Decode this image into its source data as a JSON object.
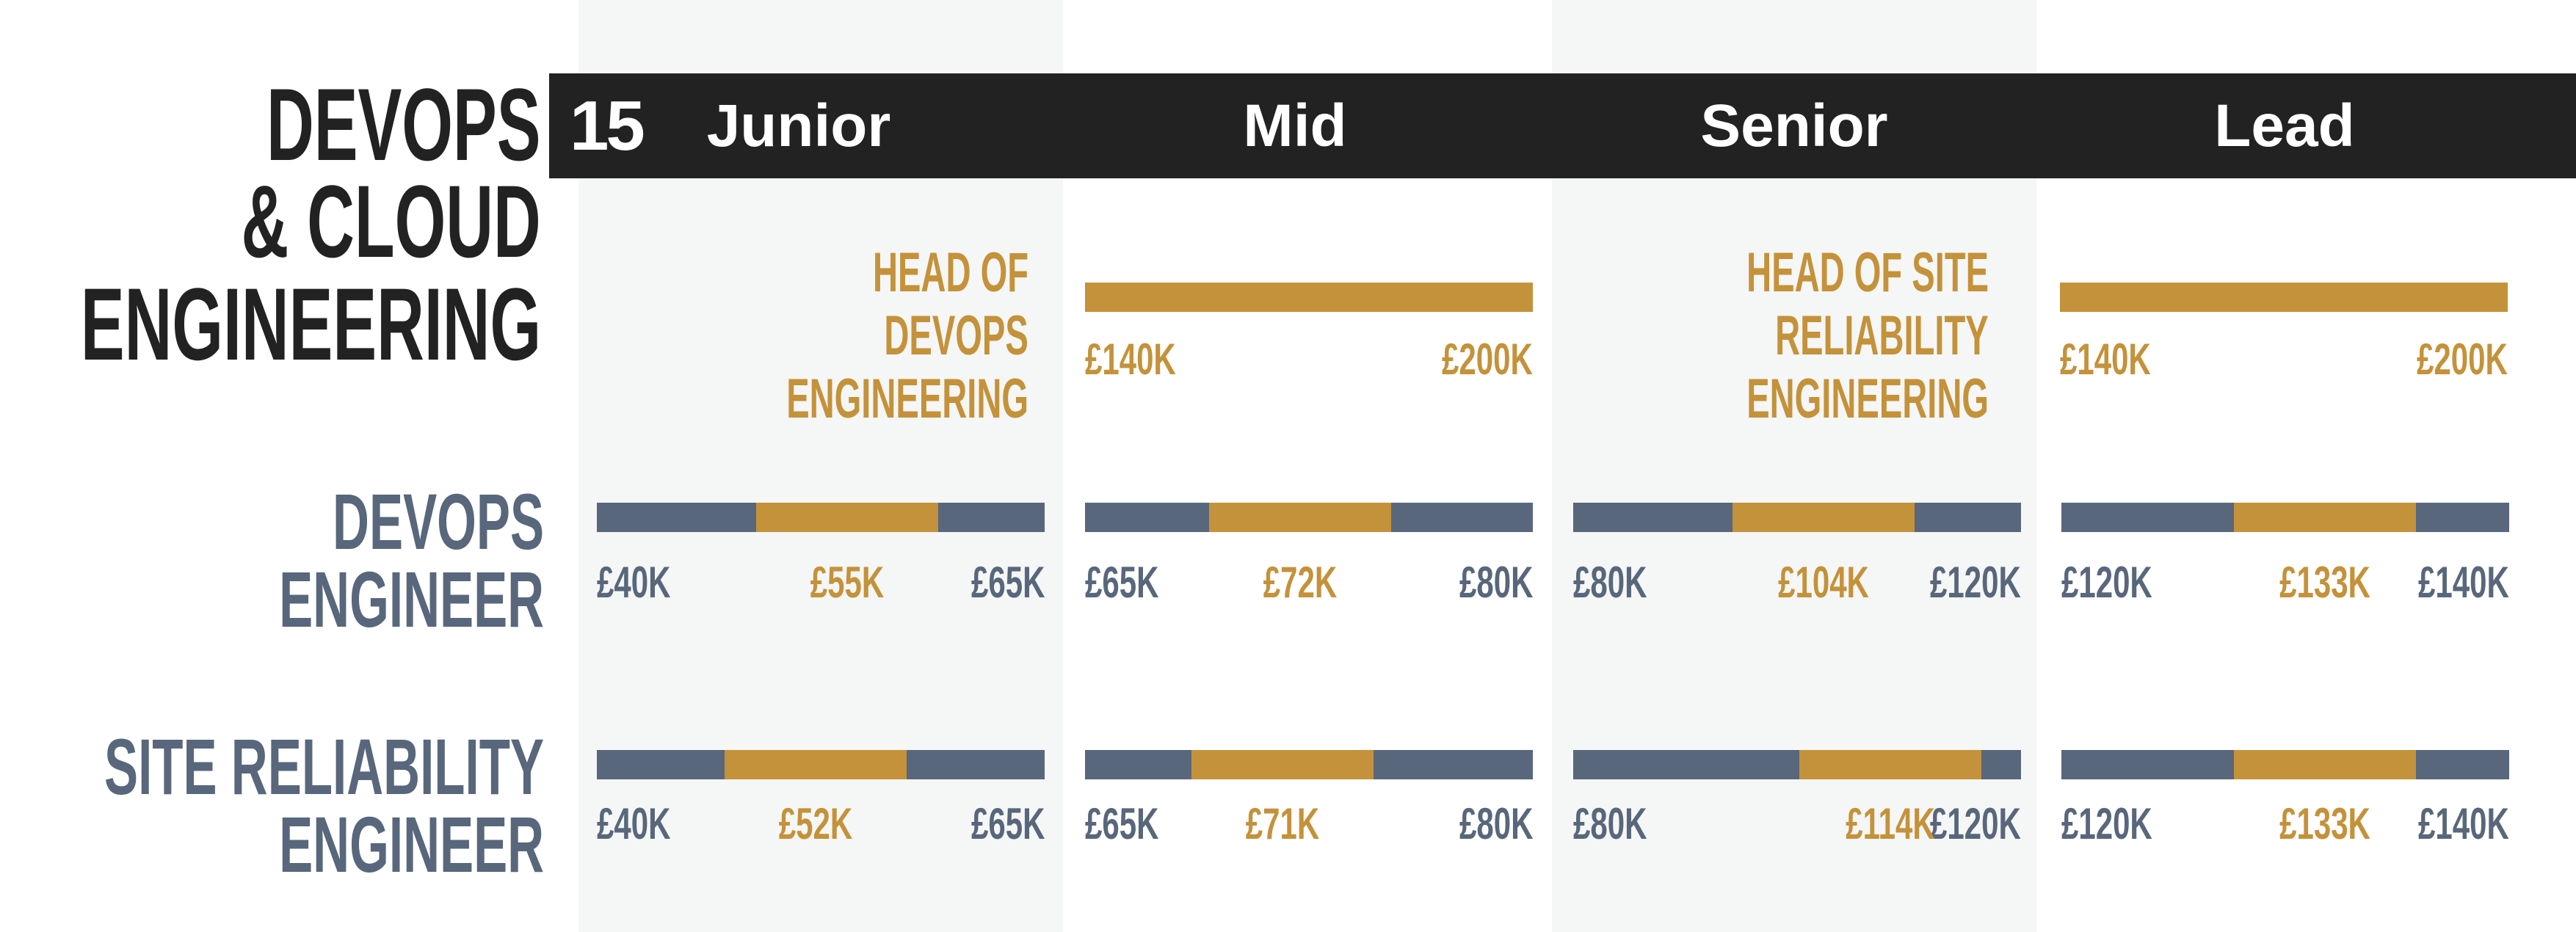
{
  "colors": {
    "dark": "#222222",
    "slate": "#58677b",
    "gold": "#c4923a",
    "band": "#f5f6f6",
    "header_text": "#ffffff"
  },
  "title_lines": [
    "DEVOPS",
    "& CLOUD",
    "ENGINEERING"
  ],
  "page_number": "15",
  "levels": [
    "Junior",
    "Mid",
    "Senior",
    "Lead"
  ],
  "heads": [
    {
      "title_lines": [
        "HEAD OF",
        "DEVOPS",
        "ENGINEERING"
      ],
      "min_label": "£140K",
      "max_label": "£200K"
    },
    {
      "title_lines": [
        "HEAD OF SITE",
        "RELIABILITY",
        "ENGINEERING"
      ],
      "min_label": "£140K",
      "max_label": "£200K"
    }
  ],
  "roles": [
    {
      "title_lines": [
        "DEVOPS",
        "ENGINEER"
      ]
    },
    {
      "title_lines": [
        "SITE RELIABILITY",
        "ENGINEER"
      ]
    }
  ],
  "chart_data": {
    "type": "bar",
    "categories": [
      "Junior",
      "Mid",
      "Senior",
      "Lead"
    ],
    "series": [
      {
        "name": "DEVOPS ENGINEER",
        "min": [
          40,
          65,
          80,
          120
        ],
        "typical": [
          55,
          72,
          104,
          133
        ],
        "max": [
          65,
          80,
          120,
          140
        ],
        "min_labels": [
          "£40K",
          "£65K",
          "£80K",
          "£120K"
        ],
        "typical_labels": [
          "£55K",
          "£72K",
          "£104K",
          "£133K"
        ],
        "max_labels": [
          "£65K",
          "£80K",
          "£120K",
          "£140K"
        ]
      },
      {
        "name": "SITE RELIABILITY ENGINEER",
        "min": [
          40,
          65,
          80,
          120
        ],
        "typical": [
          52,
          71,
          114,
          133
        ],
        "max": [
          65,
          80,
          120,
          140
        ],
        "min_labels": [
          "£40K",
          "£65K",
          "£80K",
          "£120K"
        ],
        "typical_labels": [
          "£52K",
          "£71K",
          "£114K",
          "£133K"
        ],
        "max_labels": [
          "£65K",
          "£80K",
          "£120K",
          "£140K"
        ]
      },
      {
        "name": "HEAD OF DEVOPS ENGINEERING",
        "min": [
          140
        ],
        "max": [
          200
        ],
        "min_labels": [
          "£140K"
        ],
        "max_labels": [
          "£200K"
        ]
      },
      {
        "name": "HEAD OF SITE RELIABILITY ENGINEERING",
        "min": [
          140
        ],
        "max": [
          200
        ],
        "min_labels": [
          "£140K"
        ],
        "max_labels": [
          "£200K"
        ]
      }
    ],
    "value_unit": "£K",
    "legend": "none",
    "grid": false
  }
}
